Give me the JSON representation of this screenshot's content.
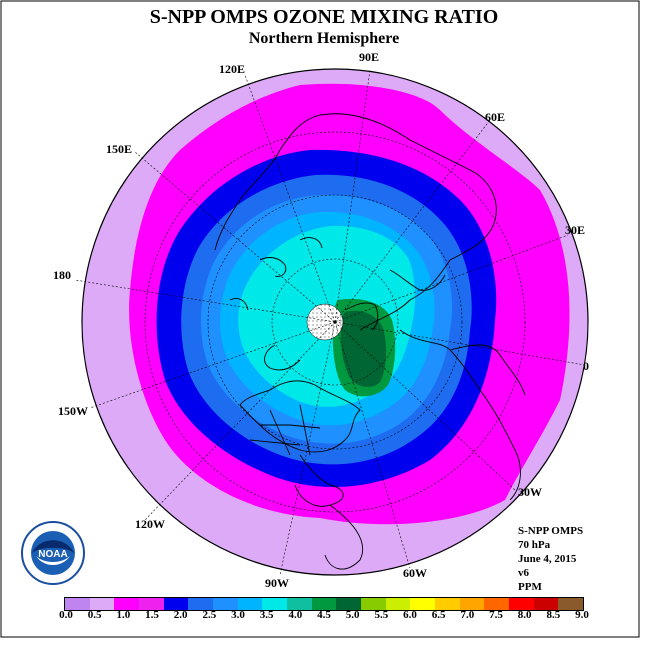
{
  "title": "S-NPP OMPS OZONE MIXING RATIO",
  "subtitle": "Northern Hemisphere",
  "longitude_labels": {
    "e120": "120E",
    "e90": "90E",
    "e60": "60E",
    "e30": "30E",
    "lon180": "180",
    "e150": "150E",
    "lon0": "0",
    "w150": "150W",
    "w120": "120W",
    "w90": "90W",
    "w60": "60W",
    "w30": "30W"
  },
  "info": {
    "instrument": "S-NPP OMPS",
    "level": "70 hPa",
    "date": "June 4, 2015",
    "version": "v6",
    "units": "PPM"
  },
  "colorbar": {
    "colors": [
      "#c084f0",
      "#dcaaf7",
      "#ff00ff",
      "#ee22ee",
      "#0000ee",
      "#1e6cf0",
      "#1e90ff",
      "#00b4ff",
      "#00e8e8",
      "#0ec0a0",
      "#009940",
      "#006633",
      "#88cc00",
      "#ccee00",
      "#ffff00",
      "#ffcc00",
      "#ffa500",
      "#ff6600",
      "#ff0000",
      "#cc0000",
      "#8b5a2b"
    ],
    "labels": [
      "0.0",
      "0.5",
      "1.0",
      "1.5",
      "2.0",
      "2.5",
      "3.0",
      "3.5",
      "4.0",
      "4.5",
      "5.0",
      "5.5",
      "6.0",
      "6.5",
      "7.0",
      "7.5",
      "8.0",
      "8.5",
      "9.0"
    ]
  },
  "logo": {
    "text": "NOAA"
  }
}
